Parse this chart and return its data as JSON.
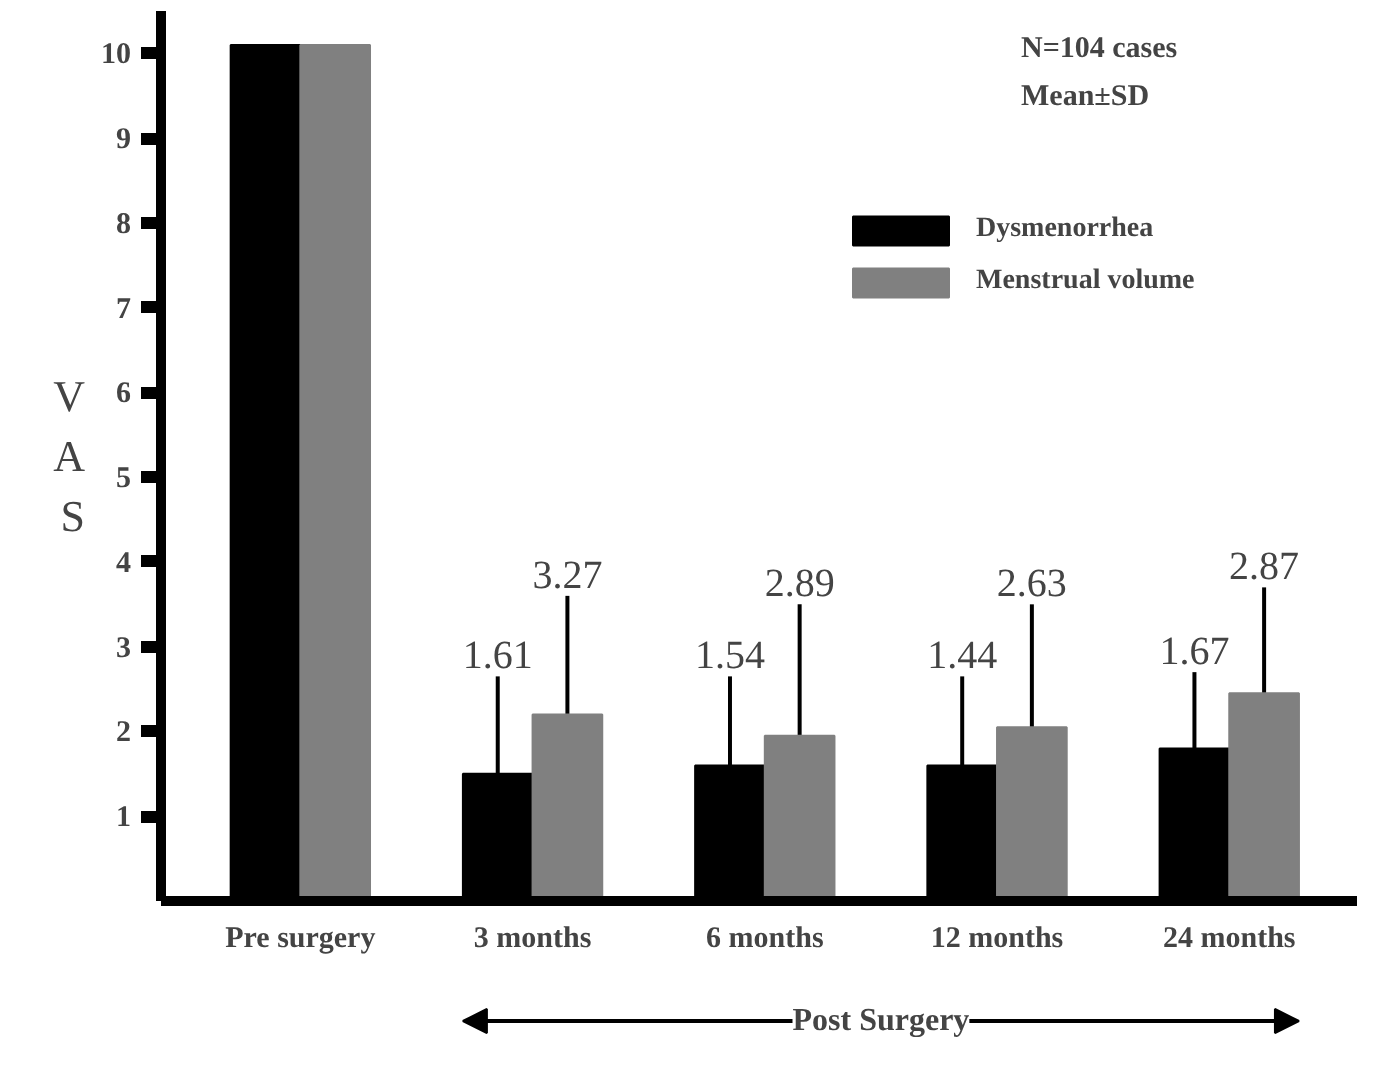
{
  "chart_data": {
    "type": "bar",
    "ylabel": "VAS",
    "categories": [
      "Pre surgery",
      "3 months",
      "6 months",
      "12 months",
      "24 months"
    ],
    "series": [
      {
        "name": "Dysmenorrhea",
        "color": "#000000",
        "values": [
          10.1,
          1.5,
          1.6,
          1.6,
          1.8
        ],
        "errors": [
          null,
          [
            1.5,
            2.65
          ],
          [
            1.6,
            2.65
          ],
          [
            1.6,
            2.65
          ],
          [
            1.8,
            2.7
          ]
        ]
      },
      {
        "name": "Menstrual volume",
        "color": "#808080",
        "values": [
          10.1,
          2.2,
          1.95,
          2.05,
          2.45
        ],
        "errors": [
          null,
          [
            2.2,
            3.6
          ],
          [
            1.95,
            3.5
          ],
          [
            2.05,
            3.5
          ],
          [
            2.45,
            3.7
          ]
        ]
      }
    ],
    "ylim": [
      0,
      10.5
    ],
    "yticks": [
      1,
      2,
      3,
      4,
      5,
      6,
      7,
      8,
      9,
      10
    ],
    "annotations": [
      "N=104 cases",
      "Mean±SD",
      "Post Surgery",
      "1.61",
      "3.27",
      "1.54",
      "2.89",
      "1.44",
      "2.63",
      "1.67",
      "2.87"
    ],
    "legend": "top right",
    "grid": false
  }
}
